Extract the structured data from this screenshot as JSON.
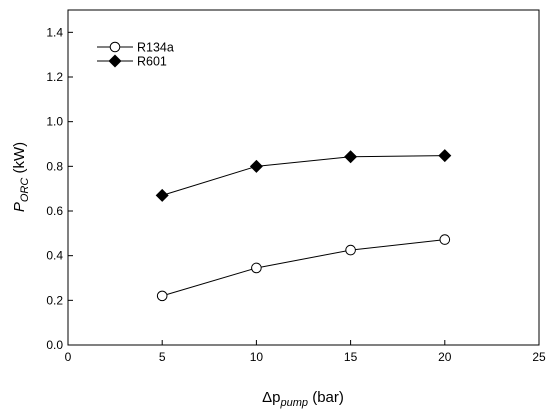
{
  "chart_data": {
    "type": "line",
    "title": "",
    "xlabel": {
      "main": "Δp",
      "sub": "pump",
      "unit": " (bar)"
    },
    "ylabel": {
      "main": "P",
      "sub": "ORC",
      "unit": " (kW)"
    },
    "xlim": [
      0,
      25
    ],
    "ylim": [
      0,
      1.5
    ],
    "x_ticks": [
      0,
      5,
      10,
      15,
      20,
      25
    ],
    "y_ticks": [
      0.0,
      0.2,
      0.4,
      0.6,
      0.8,
      1.0,
      1.2,
      1.4
    ],
    "x_tick_labels": [
      "0",
      "5",
      "10",
      "15",
      "20",
      "25"
    ],
    "y_tick_labels": [
      "0.0",
      "0.2",
      "0.4",
      "0.6",
      "0.8",
      "1.0",
      "1.2",
      "1.4"
    ],
    "grid": false,
    "legend_position": "top-left",
    "x": [
      5,
      10,
      15,
      20
    ],
    "series": [
      {
        "name": "R134a",
        "marker": "open-circle",
        "values": [
          0.22,
          0.345,
          0.425,
          0.472
        ]
      },
      {
        "name": "R601",
        "marker": "filled-diamond",
        "values": [
          0.67,
          0.8,
          0.843,
          0.848
        ]
      }
    ]
  }
}
